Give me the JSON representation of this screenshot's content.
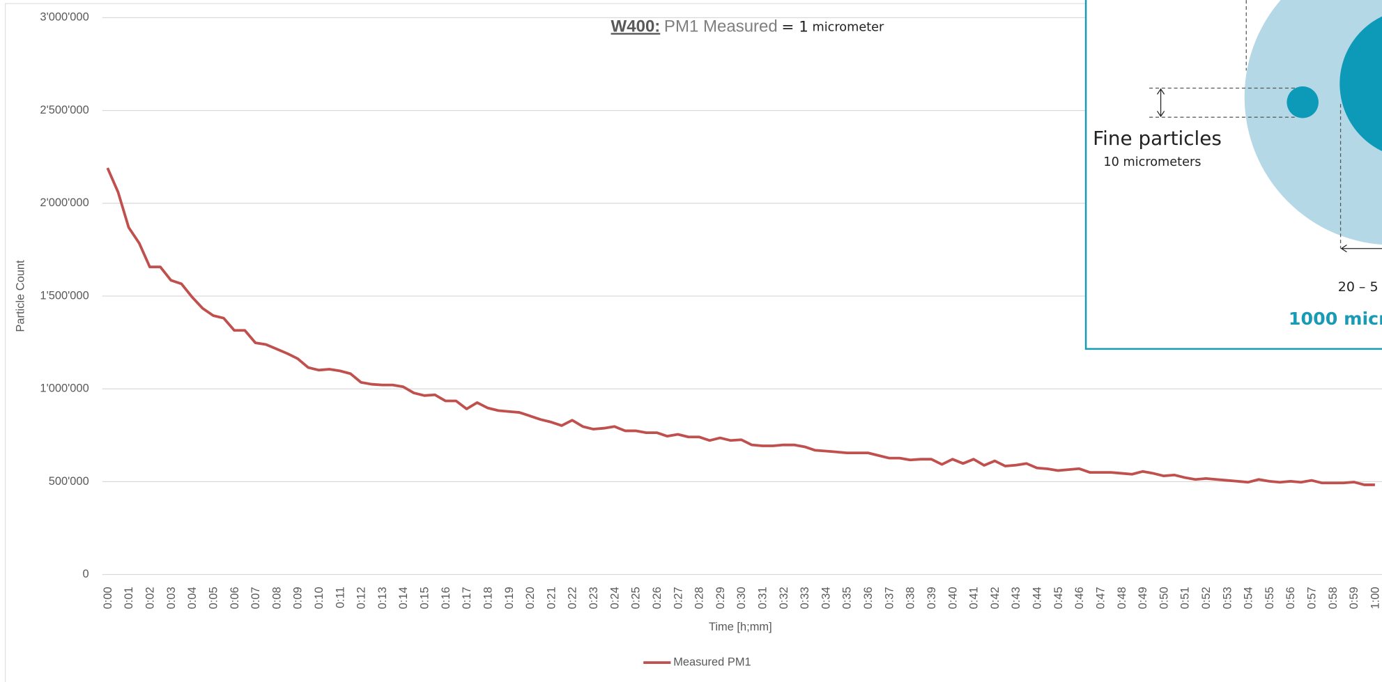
{
  "chart_data": {
    "type": "line",
    "title_parts": [
      "W400:",
      "PM1 Measured",
      "= 1",
      "micrometer"
    ],
    "y_label": "Particle Count",
    "x_label": "Time [h;mm]",
    "categories": [
      "0:00",
      null,
      "0:01",
      null,
      "0:02",
      null,
      "0:03",
      null,
      "0:04",
      null,
      "0:05",
      null,
      "0:06",
      null,
      "0:07",
      null,
      "0:08",
      null,
      "0:09",
      null,
      "0:10",
      null,
      "0:11",
      null,
      "0:12",
      null,
      "0:13",
      null,
      "0:14",
      null,
      "0:15",
      null,
      "0:16",
      null,
      "0:17",
      null,
      "0:18",
      null,
      "0:19",
      null,
      "0:20",
      null,
      "0:21",
      null,
      "0:22",
      null,
      "0:23",
      null,
      "0:24",
      null,
      "0:25",
      null,
      "0:26",
      null,
      "0:27",
      null,
      "0:28",
      null,
      "0:29",
      null,
      "0:30",
      null,
      "0:31",
      null,
      "0:32",
      null,
      "0:33",
      null,
      "0:34",
      null,
      "0:35",
      null,
      "0:36",
      null,
      "0:37",
      null,
      "0:38",
      null,
      "0:39",
      null,
      "0:40",
      null,
      "0:41",
      null,
      "0:42",
      null,
      "0:43",
      null,
      "0:44",
      null,
      "0:45",
      null,
      "0:46",
      null,
      "0:47",
      null,
      "0:48",
      null,
      "0:49",
      null,
      "0:50",
      null,
      "0:51",
      null,
      "0:52",
      null,
      "0:53",
      null,
      "0:54",
      null,
      "0:55",
      null,
      "0:56",
      null,
      "0:57",
      null,
      "0:58",
      null,
      "0:59",
      null,
      "1:00"
    ],
    "series": [
      {
        "name": "Measured PM1",
        "color": "#c0504d",
        "values": [
          2190000,
          2060000,
          1870000,
          1785000,
          1657000,
          1657000,
          1585000,
          1566000,
          1495000,
          1434000,
          1395000,
          1381000,
          1315000,
          1315000,
          1248000,
          1239000,
          1215000,
          1191000,
          1163000,
          1115000,
          1101000,
          1106000,
          1097000,
          1082000,
          1035000,
          1025000,
          1021000,
          1021000,
          1011000,
          978000,
          964000,
          968000,
          935000,
          935000,
          892000,
          926000,
          897000,
          883000,
          878000,
          873000,
          854000,
          835000,
          821000,
          802000,
          831000,
          797000,
          783000,
          788000,
          797000,
          774000,
          774000,
          764000,
          764000,
          745000,
          755000,
          741000,
          741000,
          722000,
          736000,
          722000,
          726000,
          698000,
          693000,
          693000,
          698000,
          698000,
          688000,
          669000,
          665000,
          660000,
          655000,
          655000,
          655000,
          641000,
          627000,
          627000,
          617000,
          621000,
          621000,
          593000,
          621000,
          598000,
          621000,
          588000,
          612000,
          584000,
          589000,
          598000,
          574000,
          569000,
          560000,
          565000,
          570000,
          550000,
          550000,
          550000,
          545000,
          540000,
          555000,
          545000,
          531000,
          536000,
          522000,
          512000,
          517000,
          512000,
          507000,
          502000,
          497000,
          512000,
          502000,
          497000,
          502000,
          497000,
          507000,
          493000,
          493000,
          493000,
          498000,
          483000,
          483000
        ]
      }
    ],
    "ylim": [
      0,
      3000000
    ],
    "yticks": [
      0,
      {
        "value": 500000,
        "label": "500'000"
      },
      {
        "value": 1000000,
        "label": "1'000'000"
      },
      {
        "value": 1500000,
        "label": "1'500'000"
      },
      {
        "value": 2000000,
        "label": "2'000'000"
      },
      {
        "value": 2500000,
        "label": "2'500'000"
      },
      {
        "value": 3000000,
        "label": "3'000'000"
      }
    ],
    "grid": true,
    "legend": "bottom"
  },
  "infographic": {
    "fine_title": "Fine particles",
    "fine_size": "10 micrometers",
    "coarse_size": "20 – 5",
    "scale_label": "1000 micr"
  }
}
